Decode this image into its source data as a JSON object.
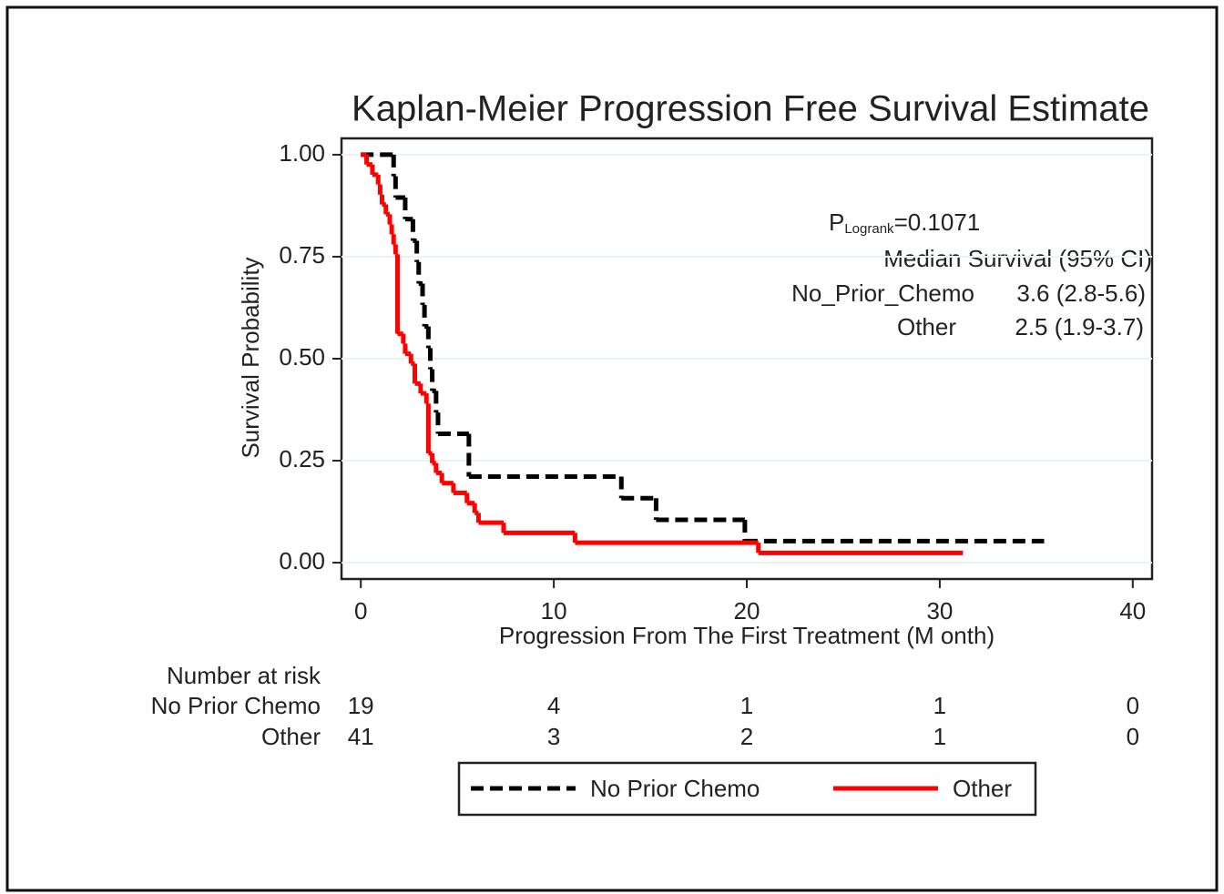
{
  "chart_data": {
    "type": "step",
    "title": "Kaplan-Meier Progression Free Survival Estimate",
    "xlabel": "Progression From The First Treatment (M onth)",
    "ylabel": "Survival Probability",
    "xlim": [
      -1,
      41
    ],
    "ylim": [
      -0.04,
      1.04
    ],
    "xticks": [
      0,
      10,
      20,
      30,
      40
    ],
    "yticks": [
      {
        "value": 0,
        "label": "0.00"
      },
      {
        "value": 0.25,
        "label": "0.25"
      },
      {
        "value": 0.5,
        "label": "0.50"
      },
      {
        "value": 0.75,
        "label": "0.75"
      },
      {
        "value": 1,
        "label": "1.00"
      }
    ],
    "grid": true,
    "series": [
      {
        "name": "No Prior Chemo",
        "color": "#000000",
        "dashed": true,
        "x": [
          0,
          1.7,
          1.8,
          2.3,
          2.7,
          2.9,
          3.0,
          3.2,
          3.3,
          3.5,
          3.6,
          3.7,
          3.9,
          4.0,
          5.6,
          13.5,
          15.3,
          19.9,
          35.4
        ],
        "values": [
          1.0,
          0.947,
          0.895,
          0.842,
          0.789,
          0.737,
          0.684,
          0.632,
          0.579,
          0.526,
          0.474,
          0.421,
          0.368,
          0.316,
          0.211,
          0.158,
          0.105,
          0.053,
          0.053
        ]
      },
      {
        "name": "Other",
        "color": "#ff0000",
        "dashed": false,
        "x": [
          0,
          0.3,
          0.6,
          0.9,
          1.0,
          1.1,
          1.3,
          1.5,
          1.6,
          1.7,
          1.8,
          1.9,
          2.2,
          2.3,
          2.6,
          2.8,
          3.1,
          3.4,
          3.5,
          3.7,
          3.9,
          4.2,
          4.8,
          5.5,
          5.9,
          6.1,
          7.4,
          11.1,
          20.6,
          31.2
        ],
        "values": [
          1.0,
          0.976,
          0.951,
          0.927,
          0.902,
          0.878,
          0.854,
          0.829,
          0.805,
          0.78,
          0.756,
          0.561,
          0.537,
          0.512,
          0.488,
          0.439,
          0.415,
          0.39,
          0.268,
          0.244,
          0.22,
          0.195,
          0.171,
          0.146,
          0.122,
          0.098,
          0.073,
          0.049,
          0.024,
          0.024
        ]
      }
    ],
    "annotation": {
      "p_symbol": "P",
      "p_subscript": "Logrank",
      "p_value": "=0.1071",
      "median_header": "Median Survival (95% CI)",
      "median_rows": [
        [
          "No_Prior_Chemo",
          "3.6 (2.8-5.6)"
        ],
        [
          "Other",
          "2.5 (1.9-3.7)"
        ]
      ]
    },
    "risk_table": {
      "title": "Number at risk",
      "times": [
        0,
        10,
        20,
        30,
        40
      ],
      "rows": [
        [
          19,
          4,
          1,
          1,
          0
        ],
        [
          41,
          3,
          2,
          1,
          0
        ]
      ]
    }
  }
}
